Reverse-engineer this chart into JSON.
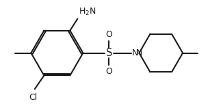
{
  "bg_color": "#ffffff",
  "line_color": "#1a1a1a",
  "text_color": "#1a1a1a",
  "bond_lw": 1.5,
  "font_size": 9.0,
  "figsize": [
    3.26,
    1.55
  ],
  "dpi": 100,
  "xlim": [
    0.5,
    5.8
  ],
  "ylim": [
    1.3,
    3.6
  ]
}
